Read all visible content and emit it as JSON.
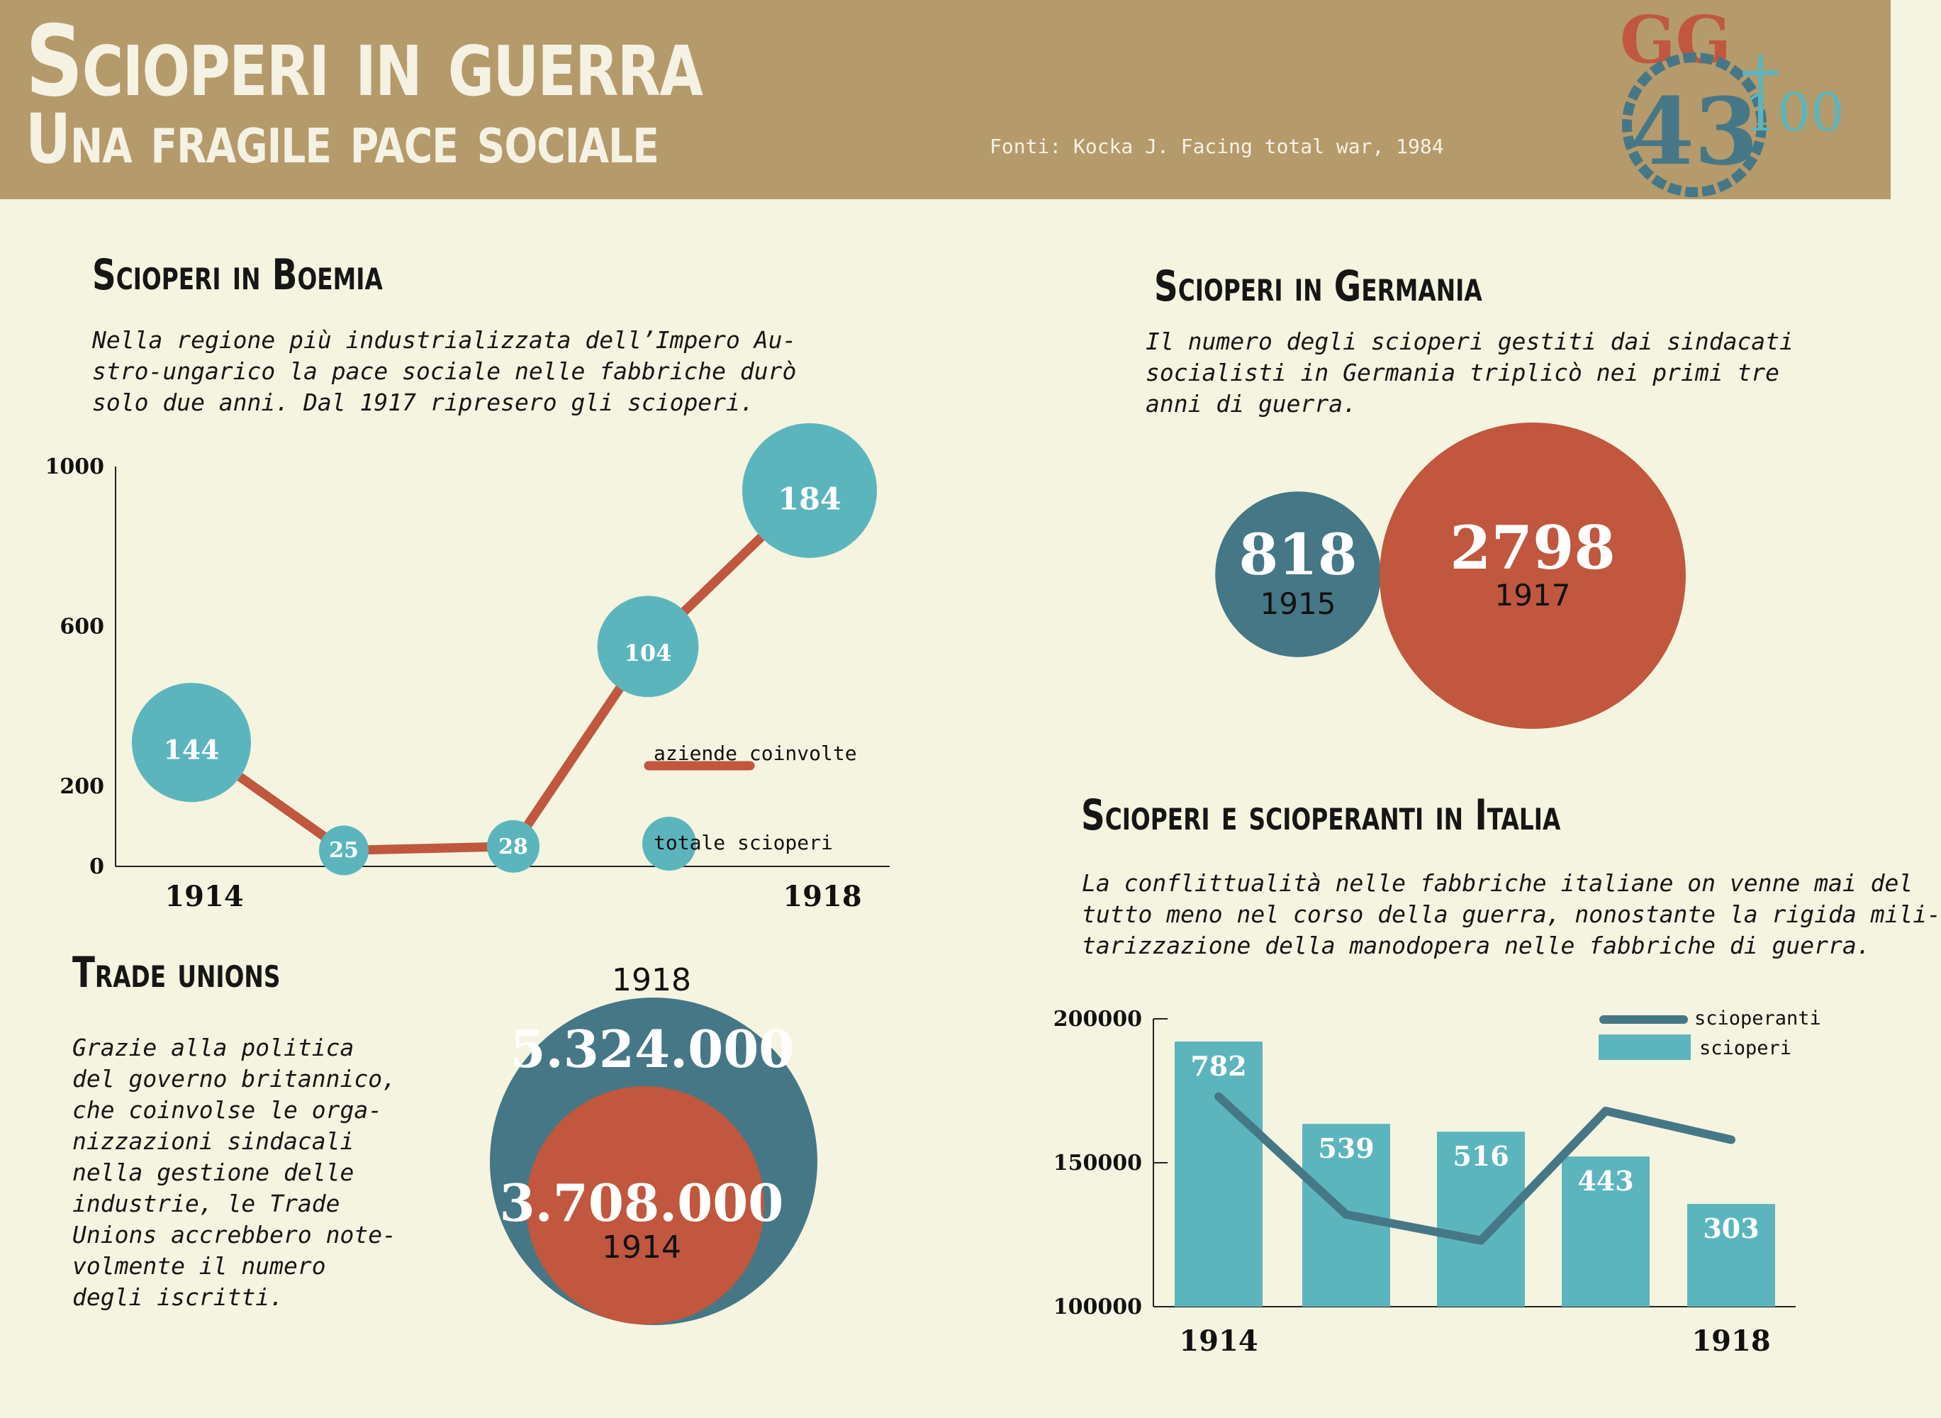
{
  "header": {
    "title": "Scioperi in guerra",
    "subtitle": "Una fragile pace sociale",
    "sources": "Fonti: Kocka J. Facing total war, 1984",
    "logo": {
      "line1": "GG",
      "line2": "43",
      "plus": "+",
      "line3": "100"
    }
  },
  "colors": {
    "header_bg": "#b59a6c",
    "page_bg": "#f5f4e1",
    "teal": "#5cb5bd",
    "orange": "#c0573e",
    "dark_teal": "#467786"
  },
  "boemia": {
    "title": "Scioperi in Boemia",
    "text_lines": [
      "Nella regione più industrializzata dell’Impero Au-",
      "stro-ungarico la pace sociale nelle fabbriche durò",
      "solo due anni. Dal 1917 ripresero gli scioperi."
    ]
  },
  "germania": {
    "title": "Scioperi in Germania",
    "text_lines": [
      "Il numero degli scioperi gestiti dai sindacati",
      "socialisti in Germania triplicò nei primi tre",
      "anni di guerra."
    ]
  },
  "italia": {
    "title": "Scioperi e scioperanti in Italia",
    "text_lines": [
      "La conflittualità nelle fabbriche italiane on venne mai del",
      "tutto meno nel corso della guerra, nonostante la rigida mili-",
      "tarizzazione della manodopera nelle fabbriche di guerra."
    ]
  },
  "trade": {
    "title": "Trade unions",
    "text_lines": [
      "Grazie alla politica",
      "del governo britannico,",
      "che coinvolse le orga-",
      "nizzazioni sindacali",
      "nella gestione delle",
      "industrie, le Trade",
      "Unions accrebbero note-",
      "volmente il numero",
      "degli iscritti."
    ]
  },
  "chart_data": [
    {
      "type": "line",
      "title": "Scioperi in Boemia",
      "x": [
        1914,
        1915,
        1916,
        1917,
        1918
      ],
      "x_tick_labels": [
        "1914",
        "",
        "",
        "",
        "1918"
      ],
      "series": [
        {
          "name": "aziende coinvolte",
          "values": [
            310,
            40,
            50,
            550,
            940
          ]
        },
        {
          "name": "totale scioperi",
          "values": [
            144,
            25,
            28,
            104,
            184
          ]
        }
      ],
      "y_ticks": [
        0,
        200,
        600,
        1000
      ],
      "ylim": [
        0,
        1000
      ],
      "grid": false,
      "legend": [
        "aziende coinvolte",
        "totale scioperi"
      ]
    },
    {
      "type": "bubble",
      "title": "Scioperi in Germania",
      "series": [
        {
          "value": 818,
          "year": "1915",
          "color": "#467786"
        },
        {
          "value": 2798,
          "year": "1917",
          "color": "#c0573e"
        }
      ]
    },
    {
      "type": "bubble",
      "title": "Trade unions",
      "top_label": "1918",
      "series": [
        {
          "value": "5.324.000",
          "year": "1918",
          "color": "#467786"
        },
        {
          "value": "3.708.000",
          "year": "1914",
          "color": "#c0573e"
        }
      ]
    },
    {
      "type": "bar",
      "title": "Scioperi e scioperanti in Italia",
      "categories": [
        "1914",
        "1915",
        "1916",
        "1917",
        "1918"
      ],
      "x_tick_labels": [
        "1914",
        "",
        "",
        "",
        "1918"
      ],
      "series": [
        {
          "name": "scioperi",
          "type": "bar",
          "values": [
            782,
            539,
            516,
            443,
            303
          ]
        },
        {
          "name": "scioperanti",
          "type": "line",
          "values": [
            173000,
            132000,
            123000,
            168000,
            158000
          ]
        }
      ],
      "y_ticks": [
        100000,
        150000,
        200000
      ],
      "ylim": [
        100000,
        200000
      ],
      "grid": false,
      "legend": [
        "scioperanti",
        "scioperi"
      ]
    }
  ]
}
